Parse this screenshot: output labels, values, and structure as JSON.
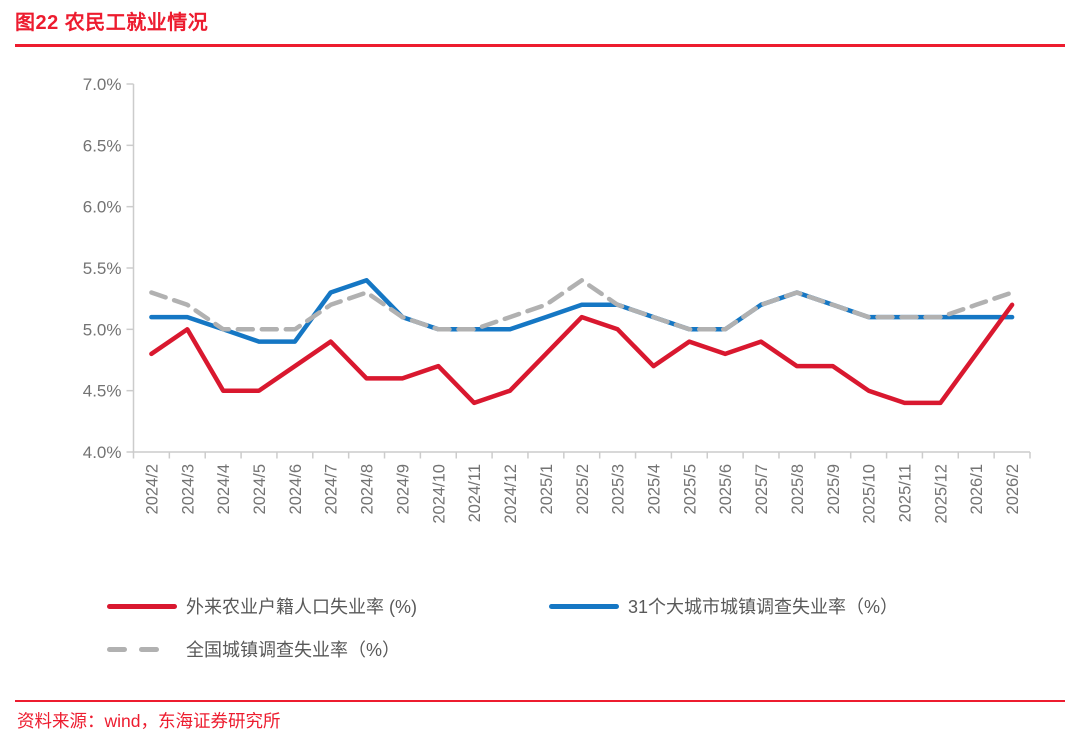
{
  "header": {
    "title": "图22  农民工就业情况"
  },
  "footer": {
    "source": "资料来源：wind，东海证券研究所"
  },
  "colors": {
    "accent_red": "#ed1c2f",
    "series_red": "#d9182f",
    "series_blue": "#1577c4",
    "series_gray": "#b1b1b1",
    "axis_line": "#cccccc",
    "tick_text": "#737373",
    "legend_text": "#595959"
  },
  "chart_data": {
    "type": "line",
    "title": "农民工就业情况",
    "categories": [
      "2024/2",
      "2024/3",
      "2024/4",
      "2024/5",
      "2024/6",
      "2024/7",
      "2024/8",
      "2024/9",
      "2024/10",
      "2024/11",
      "2024/12",
      "2025/1",
      "2025/2",
      "2025/3",
      "2025/4",
      "2025/5",
      "2025/6",
      "2025/7",
      "2025/8",
      "2025/9",
      "2025/10",
      "2025/11",
      "2025/12",
      "2026/1",
      "2026/2"
    ],
    "series": [
      {
        "name": "外来农业户籍人口失业率 (%)",
        "style": "solid",
        "color_key": "series_red",
        "values": [
          4.8,
          5.0,
          4.5,
          4.5,
          4.7,
          4.9,
          4.6,
          4.6,
          4.7,
          4.4,
          4.5,
          4.8,
          5.1,
          5.0,
          4.7,
          4.9,
          4.8,
          4.9,
          4.7,
          4.7,
          4.5,
          4.4,
          4.4,
          4.8,
          5.2
        ]
      },
      {
        "name": "31个大城市城镇调查失业率（%）",
        "style": "solid",
        "color_key": "series_blue",
        "values": [
          5.1,
          5.1,
          5.0,
          4.9,
          4.9,
          5.3,
          5.4,
          5.1,
          5.0,
          5.0,
          5.0,
          5.1,
          5.2,
          5.2,
          5.1,
          5.0,
          5.0,
          5.2,
          5.3,
          5.2,
          5.1,
          5.1,
          5.1,
          5.1,
          5.1
        ]
      },
      {
        "name": "全国城镇调查失业率（%）",
        "style": "dashed",
        "color_key": "series_gray",
        "values": [
          5.3,
          5.2,
          5.0,
          5.0,
          5.0,
          5.2,
          5.3,
          5.1,
          5.0,
          5.0,
          5.1,
          5.2,
          5.4,
          5.2,
          5.1,
          5.0,
          5.0,
          5.2,
          5.3,
          5.2,
          5.1,
          5.1,
          5.1,
          5.2,
          5.3
        ]
      }
    ],
    "ylim": [
      4.0,
      7.0
    ],
    "yticks": [
      {
        "v": 7.0,
        "label": "7.0%"
      },
      {
        "v": 6.5,
        "label": "6.5%"
      },
      {
        "v": 6.0,
        "label": "6.0%"
      },
      {
        "v": 5.5,
        "label": "5.5%"
      },
      {
        "v": 5.0,
        "label": "5.0%"
      },
      {
        "v": 4.5,
        "label": "4.5%"
      },
      {
        "v": 4.0,
        "label": "4.0%"
      }
    ],
    "grid": false,
    "legend_position": "bottom"
  }
}
